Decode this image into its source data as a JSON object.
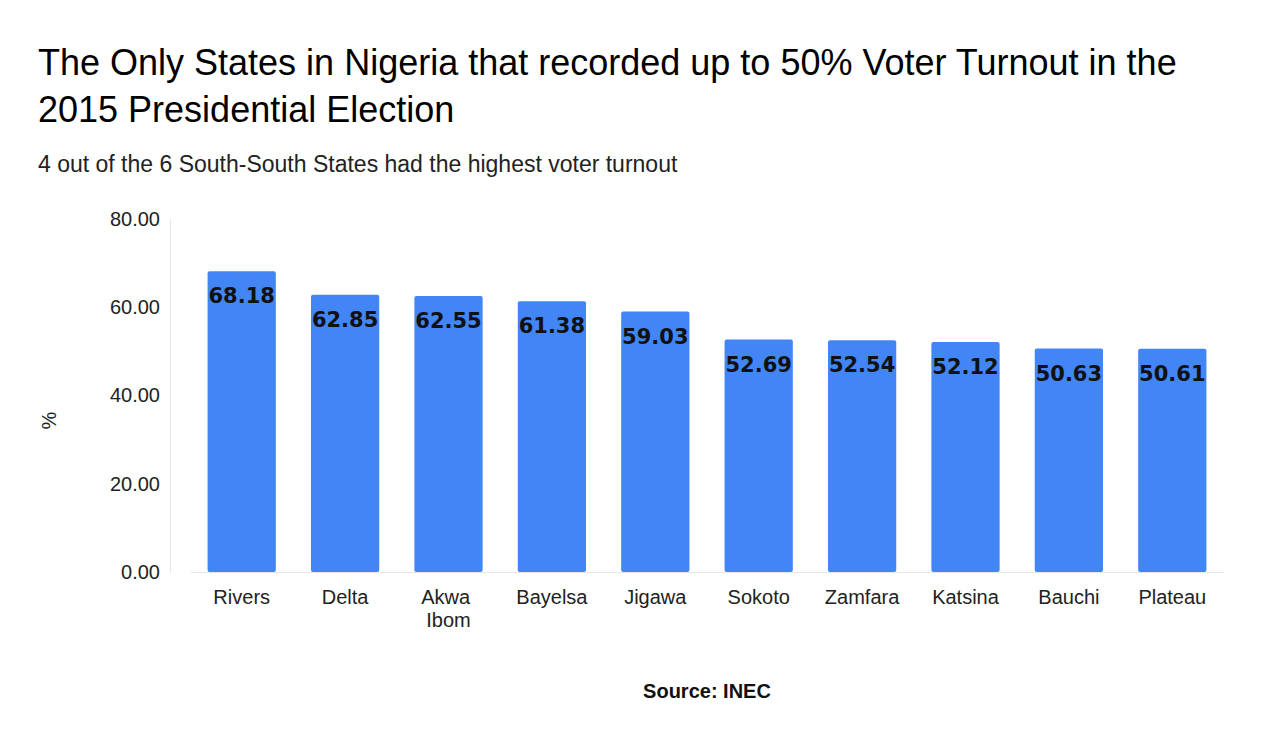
{
  "chart_data": {
    "type": "bar",
    "title": "The Only States in Nigeria that recorded up to 50% Voter Turnout in the 2015 Presidential Election",
    "subtitle": "4 out of the 6 South-South States had the highest voter turnout",
    "y_label": "%",
    "source": "Source: INEC",
    "categories": [
      "Rivers",
      "Delta",
      "Akwa Ibom",
      "Bayelsa",
      "Jigawa",
      "Sokoto",
      "Zamfara",
      "Katsina",
      "Bauchi",
      "Plateau"
    ],
    "values": [
      68.18,
      62.85,
      62.55,
      61.38,
      59.03,
      52.69,
      52.54,
      52.12,
      50.63,
      50.61
    ],
    "color": "#4285f4",
    "ylim": [
      0,
      80
    ],
    "yticks": [
      {
        "value": 0,
        "label": "0.00"
      },
      {
        "value": 20,
        "label": "20.00"
      },
      {
        "value": 40,
        "label": "40.00"
      },
      {
        "value": 60,
        "label": "60.00"
      },
      {
        "value": 80,
        "label": "80.00"
      }
    ],
    "grid": false,
    "data_labels": true
  }
}
